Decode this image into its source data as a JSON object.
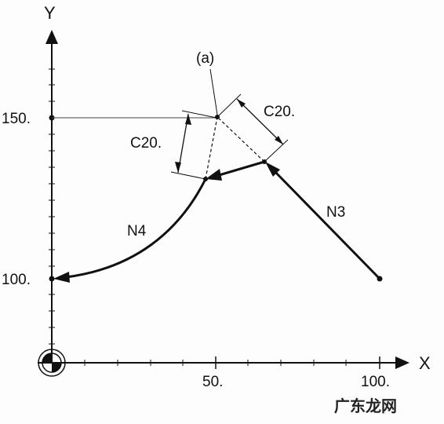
{
  "axes": {
    "x_label": "X",
    "y_label": "Y",
    "x_ticks": [
      {
        "value": 50,
        "label": "50."
      },
      {
        "value": 100,
        "label": "100."
      }
    ],
    "y_ticks": [
      {
        "value": 150,
        "label": "150."
      },
      {
        "value": 100,
        "label": "100."
      }
    ]
  },
  "annotations": {
    "corner_marker": "(a)",
    "chamfer_vertical": "C20.",
    "chamfer_diagonal": "C20.",
    "block_n3": "N3",
    "block_n4": "N4"
  },
  "watermark": "广东龙网",
  "colors": {
    "line": "#111111",
    "guide": "#444444"
  }
}
